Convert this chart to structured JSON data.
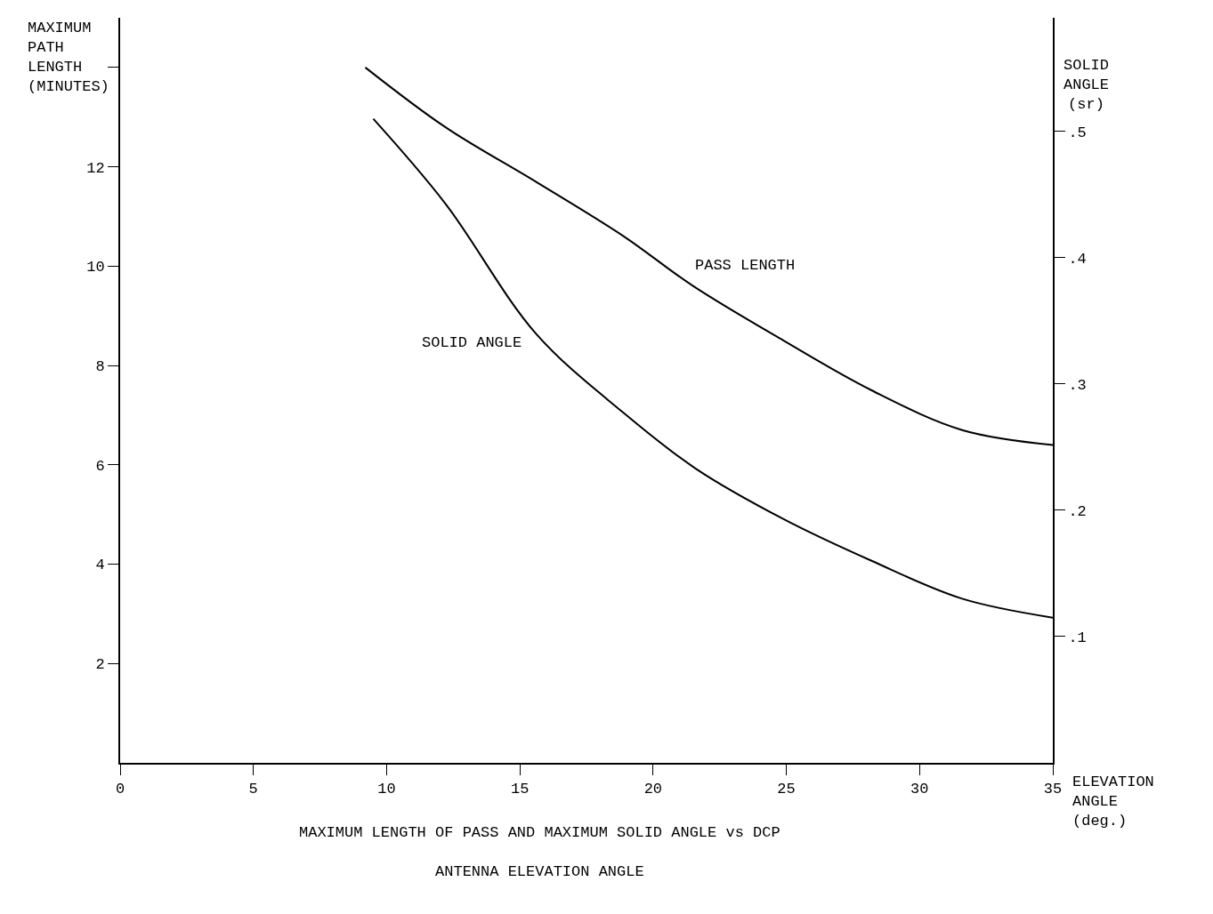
{
  "chart_data": {
    "type": "line",
    "title": "MAXIMUM LENGTH OF PASS AND MAXIMUM SOLID ANGLE vs DCP\nANTENNA ELEVATION ANGLE",
    "xlabel": "ELEVATION\nANGLE\n(deg.)",
    "ylabel": "MAXIMUM\nPATH\nLENGTH\n(MINUTES)",
    "y2label": "SOLID\nANGLE\n(sr)",
    "x": [
      9.2,
      12.2,
      15.6,
      18.9,
      21.5,
      24.9,
      28.2,
      31.6,
      35
    ],
    "series": [
      {
        "name": "PASS LENGTH",
        "color": "#000000",
        "values": [
          14.0,
          12.8,
          11.7,
          10.6,
          9.6,
          8.5,
          7.5,
          6.7,
          6.4
        ]
      },
      {
        "name": "SOLID ANGLE",
        "color": "#000000",
        "axis": "y2",
        "x": [
          9.5,
          12.2,
          15.6,
          18.9,
          21.6,
          24.9,
          28.2,
          31.6,
          35
        ],
        "values": [
          0.51,
          0.443,
          0.34,
          0.277,
          0.233,
          0.193,
          0.16,
          0.13,
          0.115
        ]
      }
    ],
    "xlim": [
      0,
      35
    ],
    "xticks": [
      0,
      5,
      10,
      15,
      20,
      25,
      30,
      35
    ],
    "ylim": [
      0,
      15
    ],
    "yticks": [
      2,
      4,
      6,
      8,
      10,
      12,
      {
        "value": 14,
        "label": null
      }
    ],
    "y2lim": [
      0,
      0.59
    ],
    "y2ticks": [
      {
        "value": 0.1,
        "label": ".1"
      },
      {
        "value": 0.2,
        "label": ".2"
      },
      {
        "value": 0.3,
        "label": ".3"
      },
      {
        "value": 0.4,
        "label": ".4"
      },
      {
        "value": 0.5,
        "label": ".5"
      }
    ],
    "legend": false,
    "marker": "none",
    "line_style": "solid"
  }
}
